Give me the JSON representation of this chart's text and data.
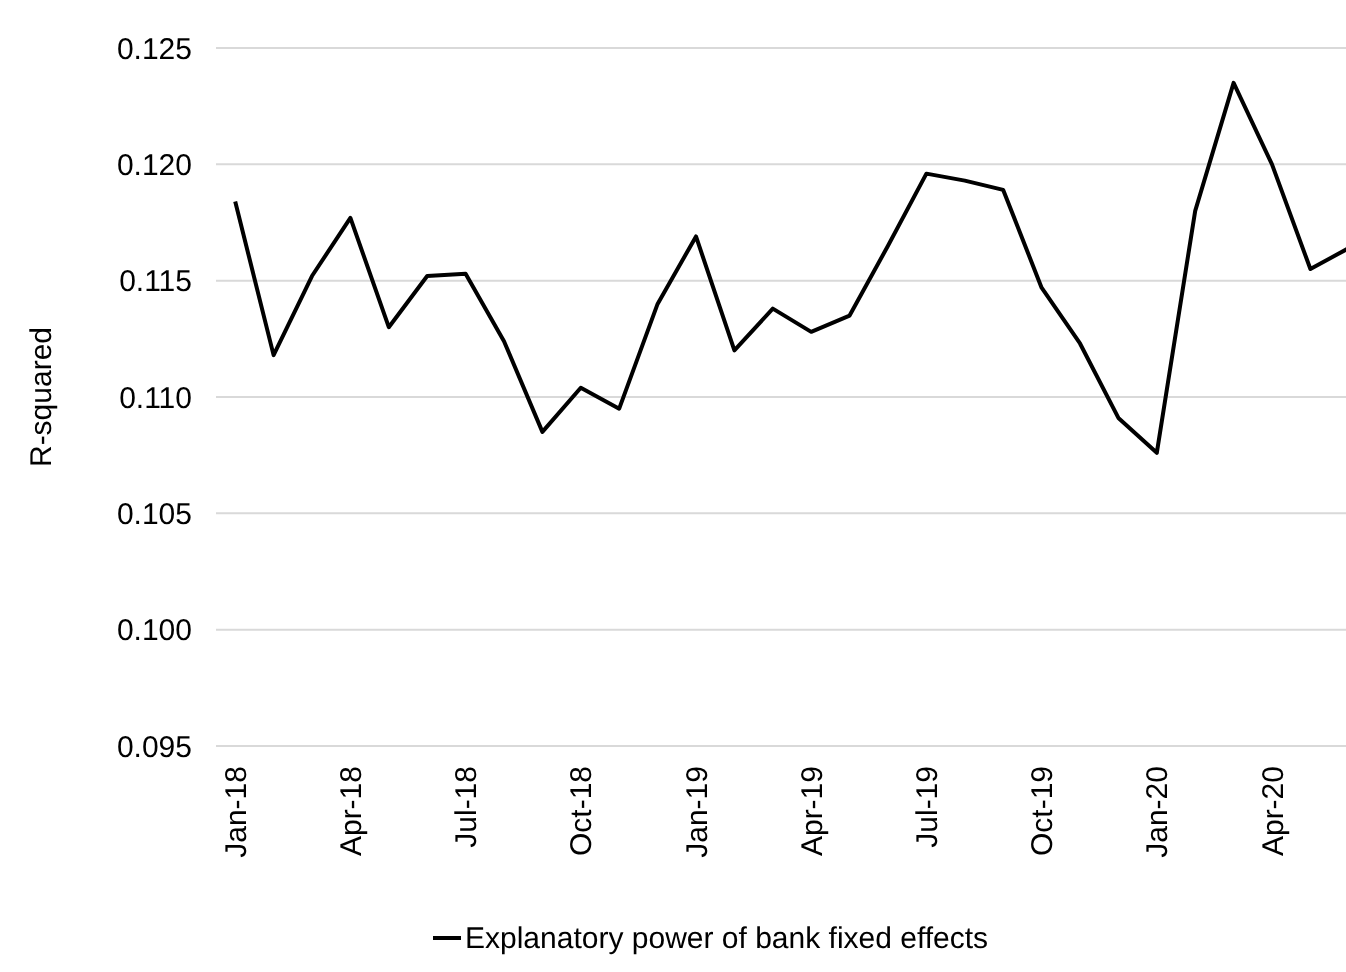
{
  "chart_data": {
    "type": "line",
    "ylabel": "R-squared",
    "categories": [
      "Jan-18",
      null,
      null,
      "Apr-18",
      null,
      null,
      "Jul-18",
      null,
      null,
      "Oct-18",
      null,
      null,
      "Jan-19",
      null,
      null,
      "Apr-19",
      null,
      null,
      "Jul-19",
      null,
      null,
      "Oct-19",
      null,
      null,
      "Jan-20",
      null,
      null,
      "Apr-20",
      null,
      null
    ],
    "series": [
      {
        "name": "Explanatory power of bank fixed effects",
        "color": "#000000",
        "values": [
          0.1184,
          0.1118,
          0.1152,
          0.1177,
          0.113,
          0.1152,
          0.1153,
          0.1124,
          0.1085,
          0.1104,
          0.1095,
          0.114,
          0.1169,
          0.112,
          0.1138,
          0.1128,
          0.1135,
          0.1165,
          0.1196,
          0.1193,
          0.1189,
          0.1147,
          0.1123,
          0.1091,
          0.1076,
          0.118,
          0.1235,
          0.12,
          0.1155,
          0.1164
        ]
      }
    ],
    "ylim": [
      0.095,
      0.125
    ],
    "yticks": [
      0.095,
      {
        "value": 0.1,
        "label": "0.100"
      },
      0.105,
      {
        "value": 0.11,
        "label": "0.110"
      },
      0.115,
      {
        "value": 0.12,
        "label": "0.120"
      },
      0.125
    ],
    "grid": "y",
    "legend": "bottom",
    "marker": "none",
    "line_style": "solid"
  }
}
